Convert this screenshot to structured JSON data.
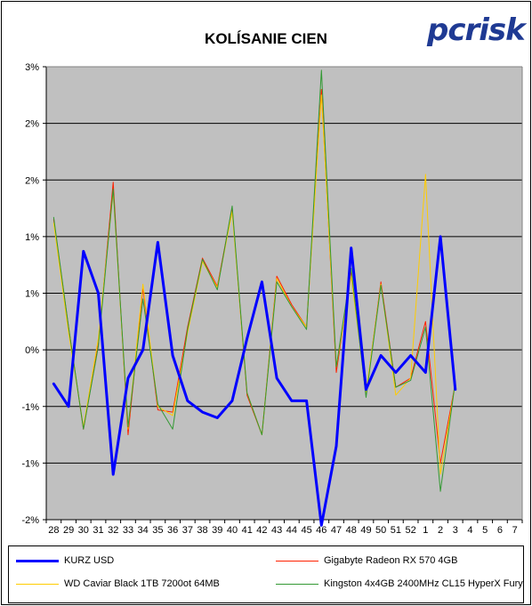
{
  "logo_text": "pcrisk",
  "chart_data": {
    "type": "line",
    "title": "KOLÍSANIE CIEN",
    "xlabel": "",
    "ylabel": "",
    "categories": [
      "28",
      "29",
      "30",
      "31",
      "32",
      "33",
      "34",
      "35",
      "36",
      "37",
      "38",
      "39",
      "40",
      "41",
      "42",
      "43",
      "44",
      "45",
      "46",
      "47",
      "48",
      "49",
      "50",
      "51",
      "52",
      "1",
      "2",
      "3",
      "4",
      "5",
      "6",
      "7"
    ],
    "y_tick_labels": [
      "-2%",
      "-1%",
      "-1%",
      "0%",
      "1%",
      "1%",
      "2%",
      "2%",
      "3%"
    ],
    "ylim": [
      -2.0,
      2.0
    ],
    "grid": true,
    "legend_position": "bottom",
    "plot_background": "#c0c0c0",
    "series": [
      {
        "name": "KURZ USD",
        "color": "#0000ff",
        "width": 3,
        "values": [
          -0.8,
          -1.0,
          0.37,
          0.0,
          -1.6,
          -0.75,
          -0.5,
          0.45,
          -0.55,
          -0.95,
          -1.05,
          -1.1,
          -0.95,
          -0.4,
          0.1,
          -0.75,
          -0.95,
          -0.95,
          -2.05,
          -1.35,
          0.4,
          -0.85,
          -0.55,
          -0.7,
          -0.55,
          -0.7,
          0.5,
          -0.85,
          null,
          null,
          null,
          null
        ]
      },
      {
        "name": "Gigabyte Radeon RX 570 4GB",
        "color": "#ff2000",
        "width": 1,
        "values": [
          0.65,
          -0.3,
          -1.2,
          -0.45,
          0.98,
          -1.25,
          0.05,
          -1.03,
          -1.05,
          -0.3,
          0.31,
          0.06,
          0.75,
          -0.9,
          -1.25,
          0.15,
          -0.1,
          -0.3,
          1.8,
          -0.7,
          0.2,
          -0.9,
          0.1,
          -0.83,
          -0.75,
          -0.25,
          -1.5,
          -0.8,
          null,
          null,
          null,
          null
        ]
      },
      {
        "name": "WD Caviar Black 1TB 7200ot 64MB",
        "color": "#ffcc00",
        "width": 1,
        "values": [
          0.62,
          -0.35,
          -1.18,
          -0.4,
          0.9,
          -1.2,
          0.08,
          -1.0,
          -1.08,
          -0.35,
          0.28,
          0.05,
          0.72,
          -0.88,
          -1.25,
          0.13,
          -0.12,
          -0.3,
          1.75,
          -0.65,
          0.15,
          -0.88,
          0.08,
          -0.9,
          -0.75,
          1.05,
          -1.6,
          -0.8,
          null,
          null,
          null,
          null
        ]
      },
      {
        "name": "Kingston 4x4GB 2400MHz CL15 HyperX Fury",
        "color": "#339933",
        "width": 1,
        "values": [
          0.67,
          -0.3,
          -1.2,
          -0.47,
          0.92,
          -1.18,
          -0.05,
          -0.98,
          -1.2,
          -0.32,
          0.3,
          0.03,
          0.77,
          -0.88,
          -1.25,
          0.1,
          -0.12,
          -0.32,
          1.97,
          -0.65,
          0.22,
          -0.92,
          0.07,
          -0.83,
          -0.77,
          -0.3,
          -1.75,
          -0.78,
          null,
          null,
          null,
          null
        ]
      }
    ]
  }
}
